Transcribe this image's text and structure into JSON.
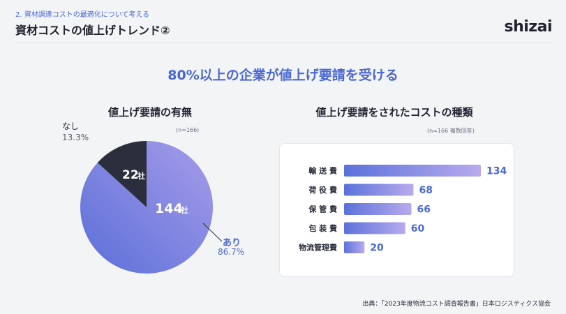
{
  "header": {
    "section_label": "2. 資材調達コストの最適化について考える",
    "title": "資材コストの値上げトレンド②",
    "logo": "shizai"
  },
  "headline": "80%以上の企業が値上げ要請を受ける",
  "pie_section": {
    "title": "値上げ要請の有無",
    "n_note": "(n=166)"
  },
  "bar_section": {
    "title": "値上げ要請をされたコストの種類",
    "n_note": "(n=166 複数回答)"
  },
  "footer": "出典：「2023年度物流コスト調査報告書」日本ロジスティクス協会",
  "chart_data": [
    {
      "type": "pie",
      "title": "値上げ要請の有無",
      "slices": [
        {
          "label": "あり",
          "value": 144,
          "value_label": "144",
          "unit": "社",
          "percent": "86.7%",
          "color": "#7b86e0"
        },
        {
          "label": "なし",
          "value": 22,
          "value_label": "22",
          "unit": "社",
          "percent": "13.3%",
          "color": "#2b2f3d"
        }
      ]
    },
    {
      "type": "bar",
      "orientation": "horizontal",
      "title": "値上げ要請をされたコストの種類",
      "categories": [
        "輸 送 費",
        "荷 役 費",
        "保 管 費",
        "包 装 費",
        "物流管理費"
      ],
      "values": [
        134,
        68,
        66,
        60,
        20
      ],
      "xlim": [
        0,
        134
      ],
      "colors": {
        "start": "#5b72db",
        "end": "#b8aaee"
      }
    }
  ]
}
